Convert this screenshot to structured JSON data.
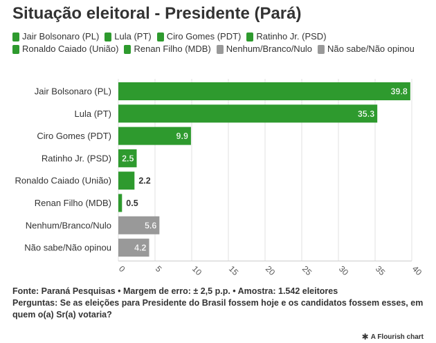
{
  "title": "Situação eleitoral - Presidente (Pará)",
  "legend": [
    {
      "label": "Jair Bolsonaro (PL)",
      "color": "#2e9a2e"
    },
    {
      "label": "Lula (PT)",
      "color": "#2e9a2e"
    },
    {
      "label": "Ciro Gomes (PDT)",
      "color": "#2e9a2e"
    },
    {
      "label": "Ratinho Jr. (PSD)",
      "color": "#2e9a2e"
    },
    {
      "label": "Ronaldo Caiado (União)",
      "color": "#2e9a2e"
    },
    {
      "label": "Renan Filho (MDB)",
      "color": "#2e9a2e"
    },
    {
      "label": "Nenhum/Branco/Nulo",
      "color": "#999999"
    },
    {
      "label": "Não sabe/Não opinou",
      "color": "#999999"
    }
  ],
  "chart_data": {
    "type": "bar",
    "orientation": "horizontal",
    "title": "Situação eleitoral - Presidente (Pará)",
    "categories": [
      "Jair Bolsonaro (PL)",
      "Lula (PT)",
      "Ciro Gomes (PDT)",
      "Ratinho Jr. (PSD)",
      "Ronaldo Caiado (União)",
      "Renan Filho (MDB)",
      "Nenhum/Branco/Nulo",
      "Não sabe/Não opinou"
    ],
    "values": [
      39.8,
      35.3,
      9.9,
      2.5,
      2.2,
      0.5,
      5.6,
      4.2
    ],
    "value_labels": [
      "39.8",
      "35.3",
      "9.9",
      "2.5",
      "2.2",
      "0.5",
      "5.6",
      "4.2"
    ],
    "colors": [
      "#2e9a2e",
      "#2e9a2e",
      "#2e9a2e",
      "#2e9a2e",
      "#2e9a2e",
      "#2e9a2e",
      "#999999",
      "#999999"
    ],
    "xlim": [
      0,
      40
    ],
    "xticks": [
      "0",
      "5",
      "10",
      "15",
      "20",
      "25",
      "30",
      "35",
      "40"
    ],
    "xlabel": "",
    "ylabel": "",
    "grid": true,
    "legend_position": "top"
  },
  "footer": {
    "source": "Fonte: Paraná Pesquisas • Margem de erro: ± 2,5 p.p. • Amostra: 1.542 eleitores",
    "question": "Perguntas: Se as eleições para Presidente do Brasil fossem hoje e os candidatos fossem esses, em quem o(a) Sr(a) votaria?"
  },
  "credit": {
    "icon": "flourish-asterisk-icon",
    "text": "A Flourish chart"
  }
}
